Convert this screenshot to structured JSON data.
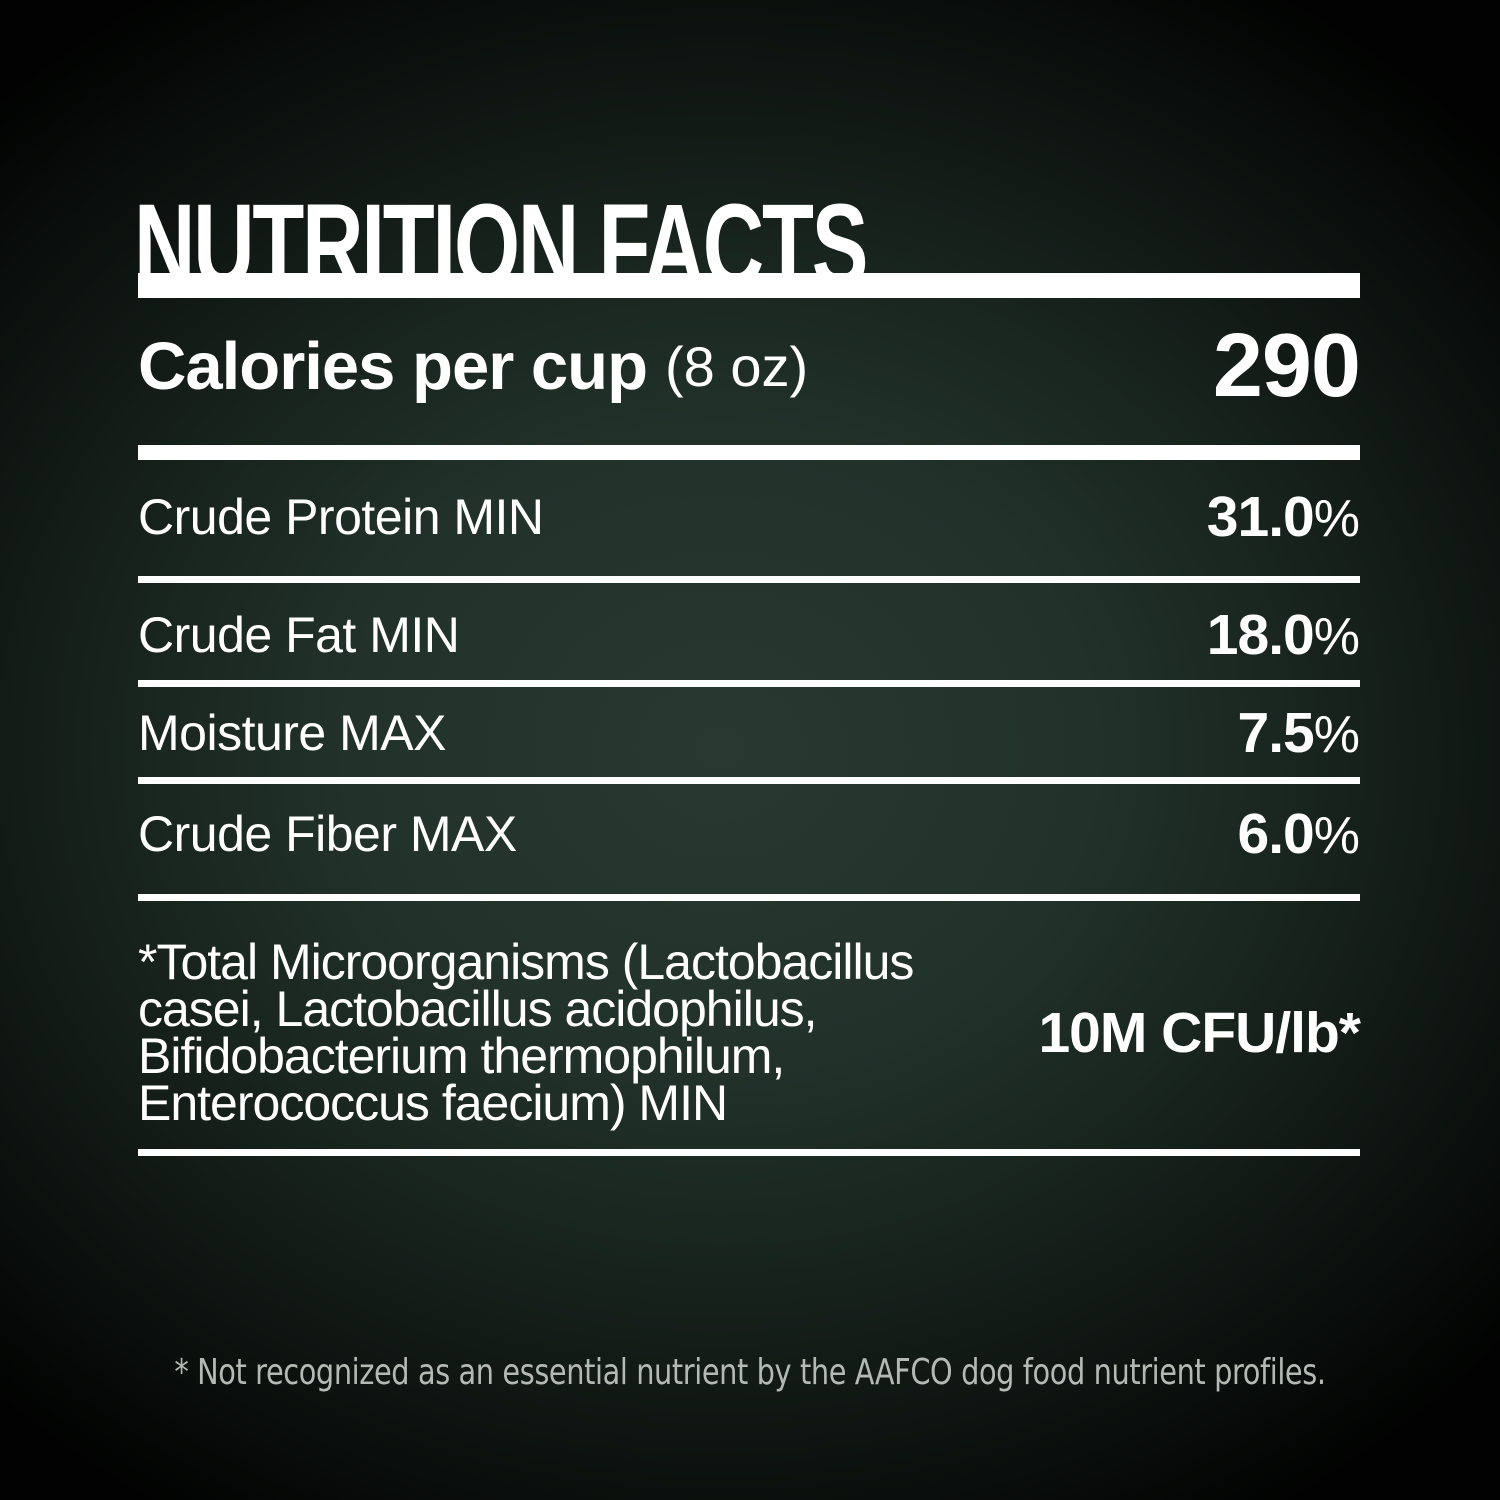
{
  "colors": {
    "background_center": "#273931",
    "background_edge": "#000000",
    "text": "#ffffff",
    "rule": "#ffffff",
    "footnote_text": "#b4b9b4"
  },
  "title": "NUTRITION FACTS",
  "calories": {
    "label": "Calories per cup",
    "note": "(8 oz)",
    "value": "290"
  },
  "nutrients": [
    {
      "label": "Crude Protein MIN",
      "value": "31.0",
      "unit": "%"
    },
    {
      "label": "Crude Fat MIN",
      "value": "18.0",
      "unit": "%"
    },
    {
      "label": "Moisture MAX",
      "value": "7.5",
      "unit": "%"
    },
    {
      "label": "Crude Fiber MAX",
      "value": "6.0",
      "unit": "%"
    }
  ],
  "microorganisms": {
    "label_lines": [
      "*Total Microorganisms (Lactobacillus",
      "casei, Lactobacillus acidophilus,",
      "Bifidobacterium thermophilum,",
      "Enterococcus faecium) MIN"
    ],
    "value": "10M CFU/lb*"
  },
  "footnote": "* Not recognized as an essential nutrient by the AAFCO dog food nutrient profiles."
}
